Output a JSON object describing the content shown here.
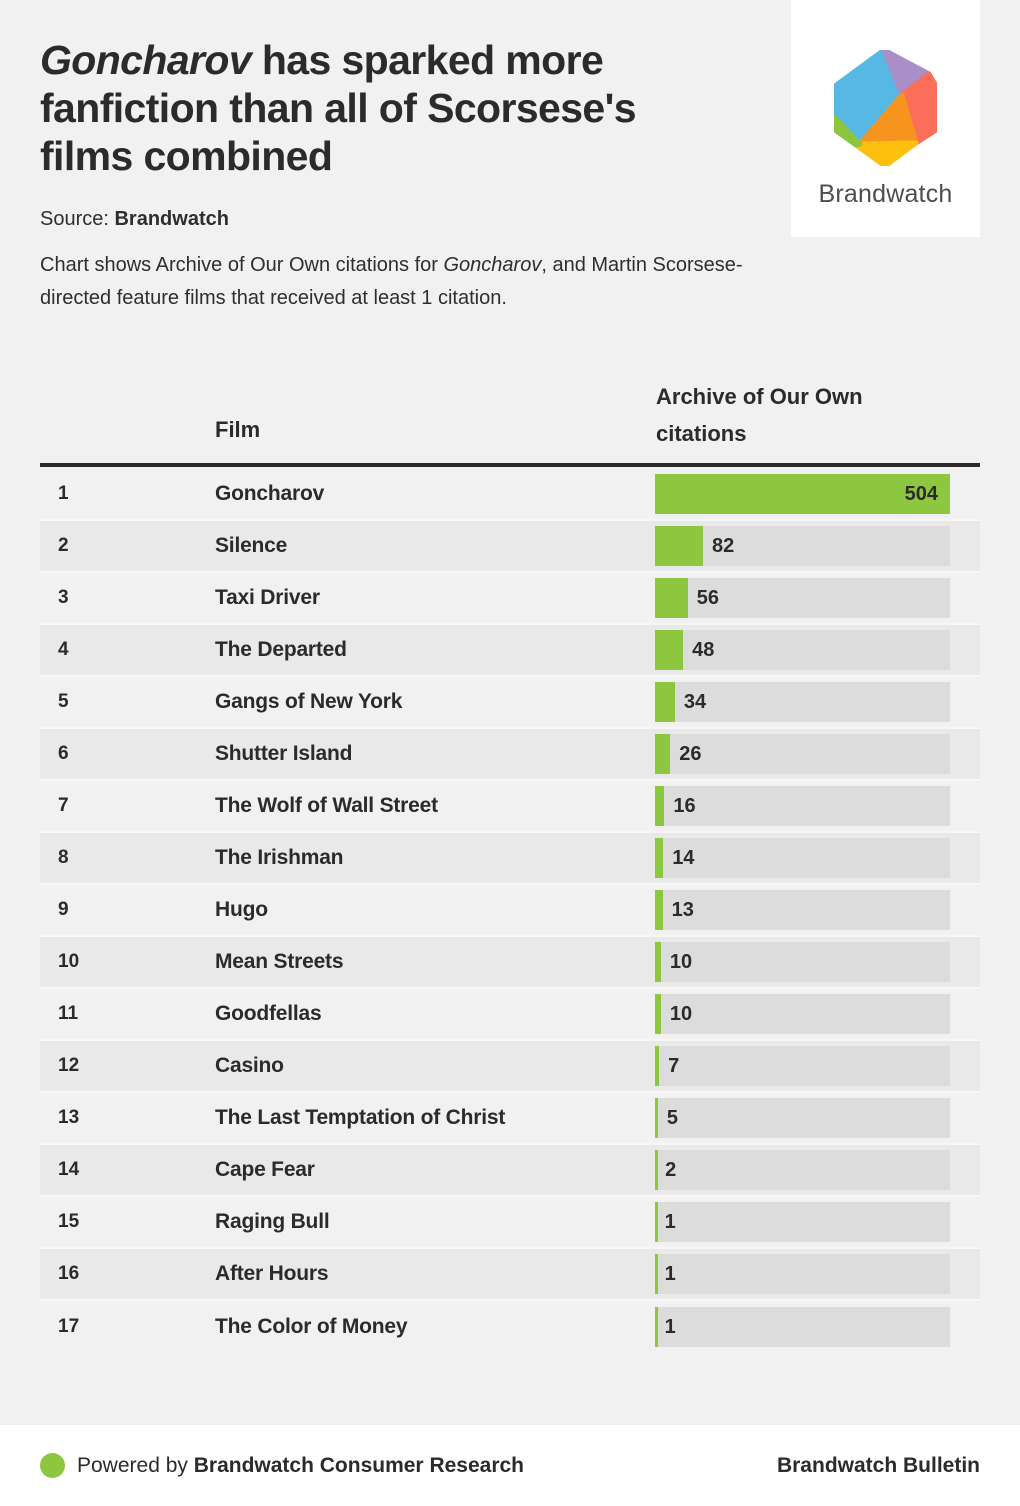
{
  "header": {
    "title_italic": "Goncharov",
    "title_rest": " has sparked more fanfiction than all of Scorsese's films combined",
    "source_label": "Source: ",
    "source_value": "Brandwatch",
    "description_pre": "Chart shows Archive of Our Own citations for ",
    "description_italic": "Goncharov",
    "description_post": ", and Martin Scorsese-directed feature films that received at least 1 citation."
  },
  "logo": {
    "wordmark": "Brandwatch",
    "facet_colors": {
      "blue": "#58b8e4",
      "purple": "#a98fc7",
      "coral": "#fa6e5a",
      "orange": "#f7941e",
      "yellow": "#fdc00e",
      "green": "#8cc63f"
    }
  },
  "table": {
    "columns": {
      "film": "Film",
      "citations": "Archive of Our Own citations"
    }
  },
  "chart_data": {
    "type": "bar",
    "orientation": "horizontal",
    "title": "Goncharov has sparked more fanfiction than all of Scorsese's films combined",
    "xlabel": "Archive of Our Own citations",
    "xlim": [
      0,
      504
    ],
    "grid": false,
    "bar_color": "#8dc63f",
    "track_color": "#dcdcdc",
    "ranks": [
      1,
      2,
      3,
      4,
      5,
      6,
      7,
      8,
      9,
      10,
      11,
      12,
      13,
      14,
      15,
      16,
      17
    ],
    "categories": [
      "Goncharov",
      "Silence",
      "Taxi Driver",
      "The Departed",
      "Gangs of New York",
      "Shutter Island",
      "The Wolf of Wall Street",
      "The Irishman",
      "Hugo",
      "Mean Streets",
      "Goodfellas",
      "Casino",
      "The Last Temptation of Christ",
      "Cape Fear",
      "Raging Bull",
      "After Hours",
      "The Color of Money"
    ],
    "values": [
      504,
      82,
      56,
      48,
      34,
      26,
      16,
      14,
      13,
      10,
      10,
      7,
      5,
      2,
      1,
      1,
      1
    ]
  },
  "footer": {
    "powered_by_prefix": "Powered by ",
    "powered_by_bold": "Brandwatch Consumer Research",
    "right_text": "Brandwatch Bulletin"
  }
}
